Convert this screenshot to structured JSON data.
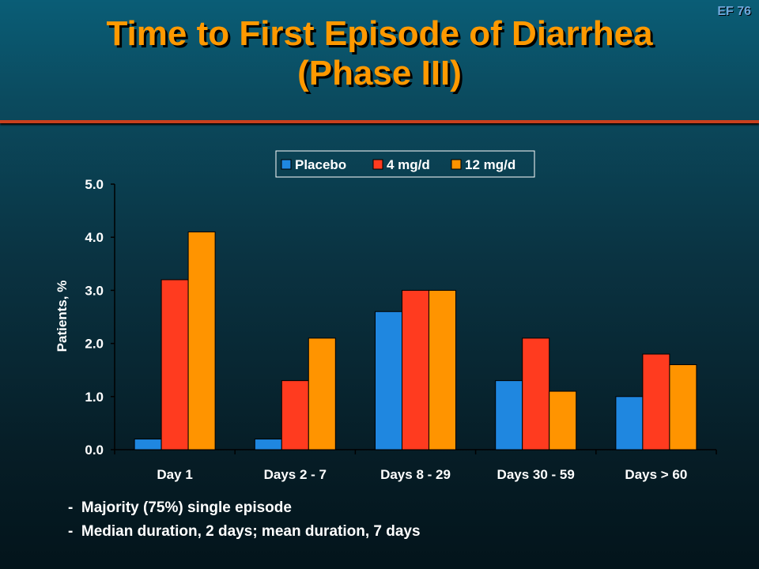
{
  "slide_id": "EF 76",
  "title_line1": "Time to First Episode of Diarrhea",
  "title_line2": "(Phase III)",
  "notes": [
    "-  Majority (75%) single episode",
    "-  Median duration, 2 days; mean duration, 7 days"
  ],
  "colors": {
    "title": "#ff9900",
    "placebo": "#1f87e0",
    "4mg": "#ff3b1f",
    "12mg": "#ff9400"
  },
  "chart_data": {
    "type": "bar",
    "title": "",
    "xlabel": "",
    "ylabel": "Patients, %",
    "ylim": [
      0,
      5
    ],
    "yticks": [
      "0.0",
      "1.0",
      "2.0",
      "3.0",
      "4.0",
      "5.0"
    ],
    "categories": [
      "Day 1",
      "Days 2 - 7",
      "Days 8 - 29",
      "Days 30 - 59",
      "Days > 60"
    ],
    "legend_position": "top",
    "grid": false,
    "series": [
      {
        "name": "Placebo",
        "color": "#1f87e0",
        "values": [
          0.2,
          0.2,
          2.6,
          1.3,
          1.0
        ]
      },
      {
        "name": "4 mg/d",
        "color": "#ff3b1f",
        "values": [
          3.2,
          1.3,
          3.0,
          2.1,
          1.8
        ]
      },
      {
        "name": "12 mg/d",
        "color": "#ff9400",
        "values": [
          4.1,
          2.1,
          3.0,
          1.1,
          1.6
        ]
      }
    ]
  }
}
